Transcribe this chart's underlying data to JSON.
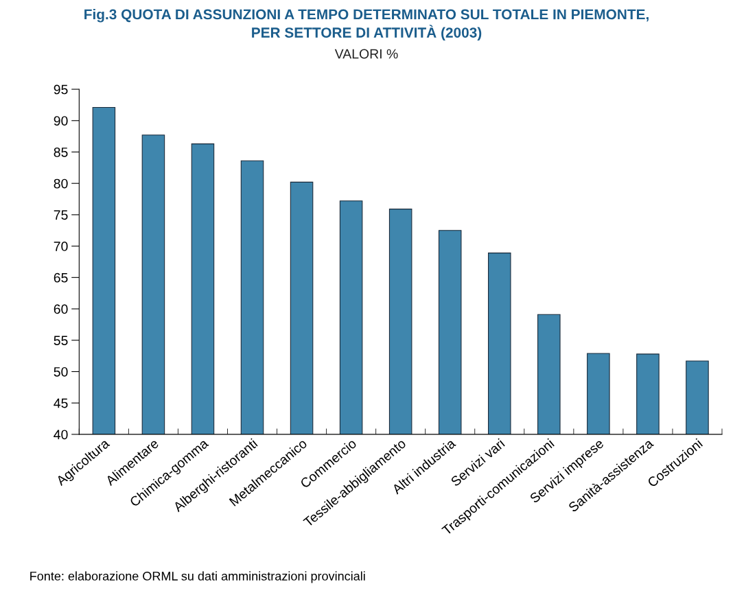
{
  "chart_data": {
    "type": "bar",
    "title": "Fig.3 QUOTA DI ASSUNZIONI A TEMPO DETERMINATO SUL TOTALE IN PIEMONTE,\nPER SETTORE DI ATTIVITÀ (2003)",
    "subtitle": "VALORI %",
    "categories": [
      "Agricoltura",
      "Alimentare",
      "Chimica-gomma",
      "Alberghi-ristoranti",
      "Metalmeccanico",
      "Commercio",
      "Tessile-abbigliamento",
      "Altri industria",
      "Servizi vari",
      "Trasporti-comunicazioni",
      "Servizi imprese",
      "Sanità-assistenza",
      "Costruzioni"
    ],
    "values": [
      92.1,
      87.7,
      86.3,
      83.6,
      80.2,
      77.2,
      75.9,
      72.5,
      68.9,
      59.1,
      52.9,
      52.8,
      51.7
    ],
    "color": "#3f86ad",
    "ylim": [
      40,
      95
    ],
    "yticks": [
      40,
      45,
      50,
      55,
      60,
      65,
      70,
      75,
      80,
      85,
      90,
      95
    ],
    "grid": false,
    "annotations": [
      "Fonte: elaborazione ORML su dati amministrazioni provinciali"
    ]
  }
}
